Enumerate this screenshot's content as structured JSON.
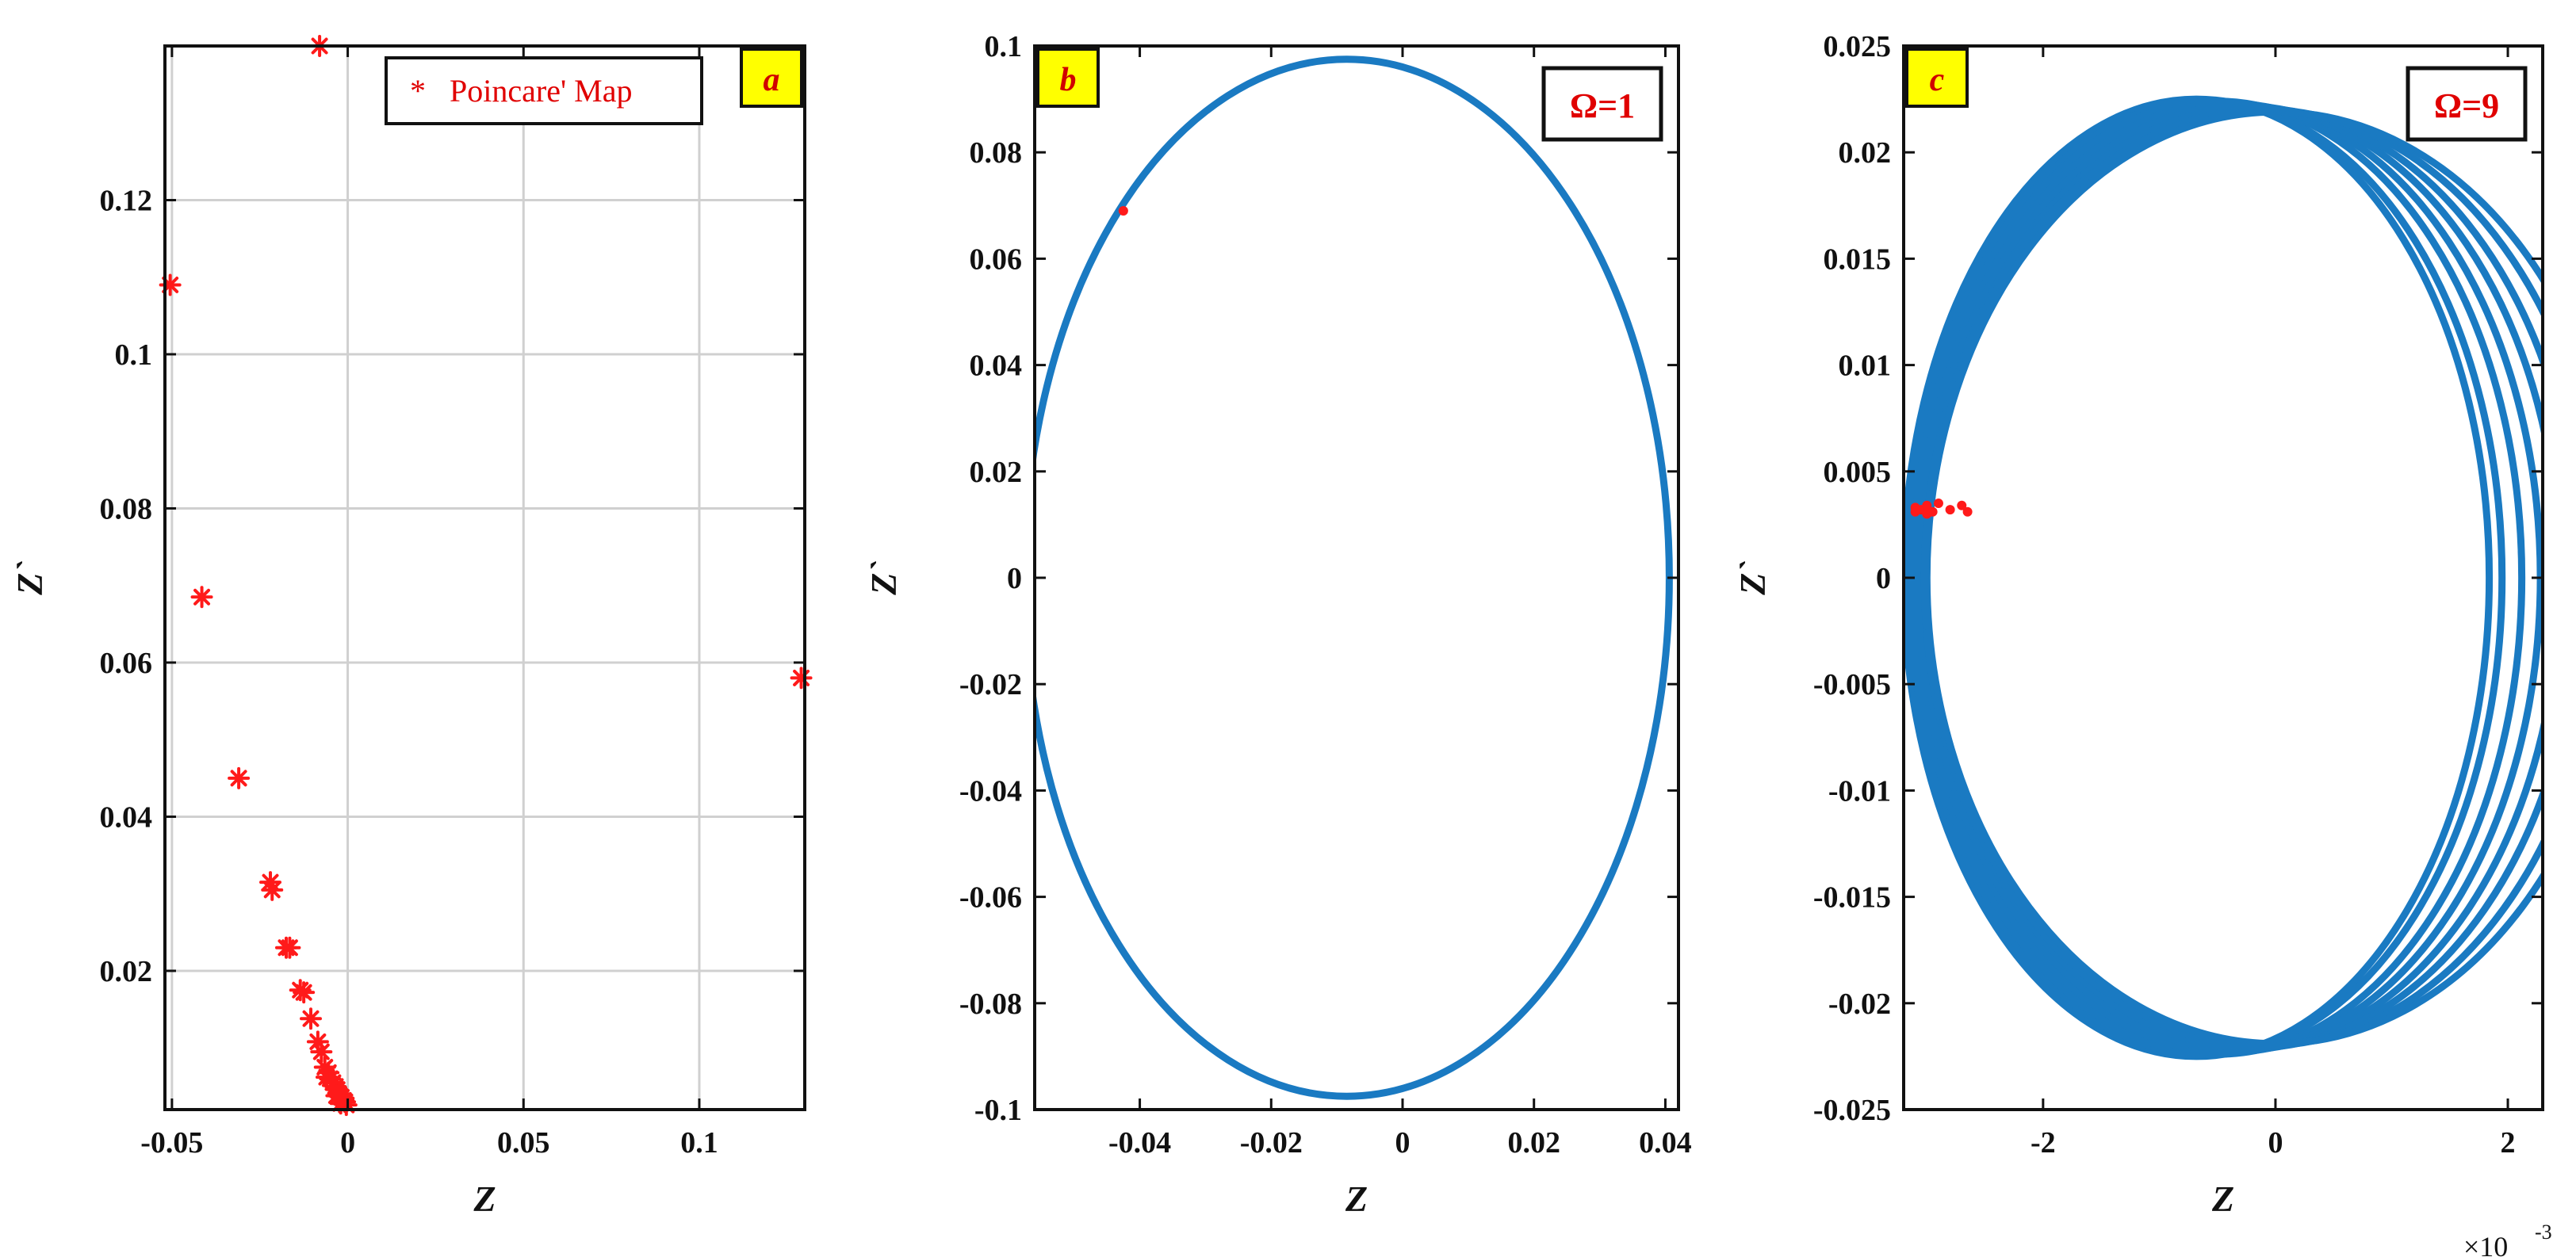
{
  "colors": {
    "orbit": "#1a7ac2",
    "poincare": "#ff1a1a",
    "tag_bg": "#ffff00",
    "grid": "#d0d0d0"
  },
  "chart_data": [
    {
      "type": "scatter",
      "panel_tag": "a",
      "xlabel": "Z",
      "ylabel": "Z`",
      "xlim": [
        -0.052,
        0.13
      ],
      "ylim": [
        0.002,
        0.14
      ],
      "grid": true,
      "xticks": [
        -0.05,
        0,
        0.05,
        0.1
      ],
      "xtick_labels": [
        "-0.05",
        "0",
        "0.05",
        "0.1"
      ],
      "yticks": [
        0.02,
        0.04,
        0.06,
        0.08,
        0.1,
        0.12
      ],
      "ytick_labels": [
        "0.02",
        "0.04",
        "0.06",
        "0.08",
        "0.1",
        "0.12"
      ],
      "legend": {
        "marker": "*",
        "label": "Poincare' Map",
        "position": "top-right"
      },
      "series": [
        {
          "marker": "*",
          "points": [
            [
              -0.008,
              0.14
            ],
            [
              -0.0505,
              0.109
            ],
            [
              -0.0415,
              0.0685
            ],
            [
              0.129,
              0.058
            ],
            [
              -0.031,
              0.045
            ],
            [
              -0.022,
              0.0315
            ],
            [
              -0.0215,
              0.0305
            ],
            [
              -0.0175,
              0.023
            ],
            [
              -0.0165,
              0.023
            ],
            [
              -0.0135,
              0.0175
            ],
            [
              -0.0125,
              0.0172
            ],
            [
              -0.0105,
              0.0138
            ],
            [
              -0.0085,
              0.0108
            ],
            [
              -0.0075,
              0.0095
            ],
            [
              -0.0065,
              0.0075
            ],
            [
              -0.0055,
              0.0068
            ],
            [
              -0.005,
              0.006
            ],
            [
              -0.0042,
              0.0055
            ],
            [
              -0.0035,
              0.005
            ],
            [
              -0.003,
              0.0046
            ],
            [
              -0.0025,
              0.004
            ],
            [
              -0.0018,
              0.0036
            ],
            [
              -0.0012,
              0.0032
            ],
            [
              -0.0008,
              0.003
            ],
            [
              -0.0004,
              0.0026
            ],
            [
              -0.002,
              0.0028
            ],
            [
              -0.0032,
              0.0038
            ],
            [
              -0.006,
              0.0062
            ]
          ]
        }
      ]
    },
    {
      "type": "line",
      "panel_tag": "b",
      "xlabel": "Z",
      "ylabel": "Z`",
      "xlim": [
        -0.056,
        0.042
      ],
      "ylim": [
        -0.1,
        0.1
      ],
      "grid": false,
      "annotation": "Ω=1",
      "xticks": [
        -0.04,
        -0.02,
        0,
        0.02,
        0.04
      ],
      "xtick_labels": [
        "-0.04",
        "-0.02",
        "0",
        "0.02",
        "0.04"
      ],
      "yticks": [
        -0.1,
        -0.08,
        -0.06,
        -0.04,
        -0.02,
        0,
        0.02,
        0.04,
        0.06,
        0.08,
        0.1
      ],
      "ytick_labels": [
        "-0.1",
        "-0.08",
        "-0.06",
        "-0.04",
        "-0.02",
        "0",
        "0.02",
        "0.04",
        "0.06",
        "0.08",
        "0.1"
      ],
      "orbits": [
        {
          "cx": -0.0085,
          "cy": 0,
          "rx": 0.0491,
          "ry": 0.0975
        }
      ],
      "poincare_points": [
        [
          -0.0425,
          0.069
        ]
      ]
    },
    {
      "type": "line",
      "panel_tag": "c",
      "xlabel": "Z",
      "ylabel": "Z`",
      "xlim": [
        -0.0032,
        0.0023
      ],
      "ylim": [
        -0.025,
        0.025
      ],
      "grid": false,
      "annotation": "Ω=9",
      "x_multiplier": "×10",
      "x_multiplier_exponent": "-3",
      "xticks": [
        -0.002,
        0,
        0.002
      ],
      "xtick_labels": [
        "-2",
        "0",
        "2"
      ],
      "yticks": [
        -0.025,
        -0.02,
        -0.015,
        -0.01,
        -0.005,
        0,
        0.005,
        0.01,
        0.015,
        0.02,
        0.025
      ],
      "ytick_labels": [
        "-0.025",
        "-0.02",
        "-0.015",
        "-0.01",
        "-0.005",
        "0",
        "0.005",
        "0.01",
        "0.015",
        "0.02",
        "0.025"
      ],
      "orbits": [
        {
          "cx": -0.00068,
          "cy": 0,
          "rx": 0.00252,
          "ry": 0.0225
        },
        {
          "cx": -0.0006,
          "cy": 0,
          "rx": 0.00255,
          "ry": 0.0224
        },
        {
          "cx": -0.0005,
          "cy": 0,
          "rx": 0.00262,
          "ry": 0.0224
        },
        {
          "cx": -0.0004,
          "cy": 0,
          "rx": 0.00268,
          "ry": 0.0223
        },
        {
          "cx": -0.0003,
          "cy": 0,
          "rx": 0.00275,
          "ry": 0.0222
        },
        {
          "cx": -0.0002,
          "cy": 0,
          "rx": 0.00282,
          "ry": 0.0221
        },
        {
          "cx": -0.0001,
          "cy": 0,
          "rx": 0.00292,
          "ry": 0.022
        },
        {
          "cx": 0.0,
          "cy": 0,
          "rx": 0.003,
          "ry": 0.0219
        }
      ],
      "poincare_points": [
        [
          -0.0031,
          0.0033
        ],
        [
          -0.00305,
          0.0032
        ],
        [
          -0.003,
          0.0034
        ],
        [
          -0.00295,
          0.0031
        ],
        [
          -0.0029,
          0.0035
        ],
        [
          -0.0028,
          0.0032
        ],
        [
          -0.0027,
          0.0034
        ],
        [
          -0.00265,
          0.0031
        ],
        [
          -0.0031,
          0.0031
        ],
        [
          -0.003,
          0.003
        ]
      ]
    }
  ]
}
